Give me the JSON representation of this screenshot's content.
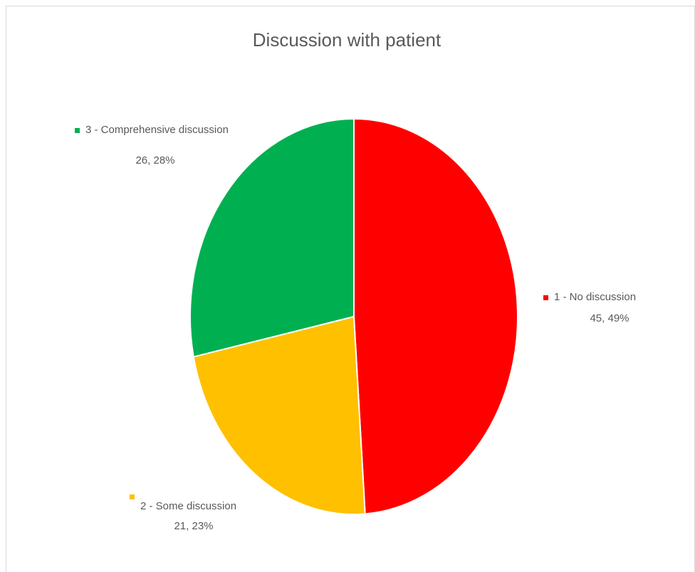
{
  "chart_data": {
    "type": "pie",
    "title": "Discussion with patient",
    "categories": [
      "1 - No discussion",
      "2 - Some discussion",
      "3 - Comprehensive discussion"
    ],
    "values": [
      45,
      21,
      26
    ],
    "value_labels": [
      "45, 49%",
      "21, 23%",
      "26, 28%"
    ],
    "colors": [
      "#ff0000",
      "#ffc000",
      "#00b050"
    ]
  }
}
